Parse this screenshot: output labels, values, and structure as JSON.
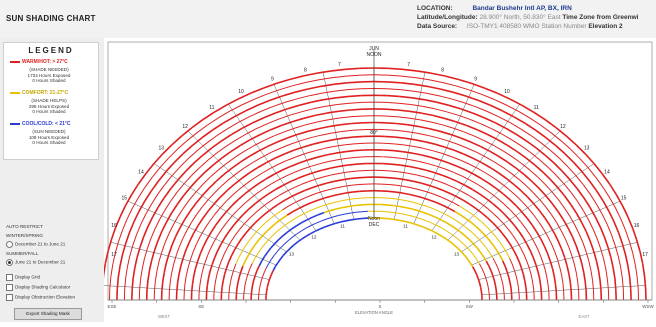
{
  "app": {
    "title": "SUN SHADING CHART"
  },
  "header": {
    "location_label": "LOCATION:",
    "location_value": "Bandar Bushehr Intl AP, BX, IRN",
    "latlon_label": "Latitude/Longitude:",
    "latlon_value": "28.900° North, 50.830° East",
    "tz_label": "Time Zone from Greenwi",
    "datasource_label": "Data Source:",
    "datasource_value": "ISO-TMY1 408580 WMO Station Number",
    "elevation_label": "Elevation 2"
  },
  "legend": {
    "title": "LEGEND",
    "warm_label": "WARM/HOT: > 27°C",
    "warm_line1": "(SHADE NEEDED)",
    "warm_line2": "1734 Hours Exposed",
    "warm_line3": "0 Hours Shaded",
    "comfort_label": "COMFORT: 21-27°C",
    "comfort_line1": "(SHADE HELPS)",
    "comfort_line2": "295 Hours Exposed",
    "comfort_line3": "0 Hours Shaded",
    "cool_label": "COOL/COLD: < 21°C",
    "cool_line1": "(SUN NEEDED)",
    "cool_line2": "108 Hours Exposed",
    "cool_line3": "0 Hours Shaded",
    "colors": {
      "warm": "#e02020",
      "comfort": "#e8c200",
      "cool": "#2a3bd6"
    }
  },
  "controls": {
    "section_label": "AUTO RESTRICT",
    "winter_label": "WINTER/SPRING",
    "winter_option": "December 21 to June 21",
    "summer_label": "SUMMER/FALL",
    "summer_option": "June 21 to December 21",
    "grid_label": "Display Grid",
    "masking_label": "Display Shading Calculator",
    "obstruction_label": "Display Obstruction Elevation",
    "button_label": "Export Shading Mask"
  },
  "chart_data": {
    "type": "sun-path",
    "top_label_1": "JUN",
    "top_label_2": "NOON",
    "inner_label_1": "Noon",
    "inner_label_2": "DEC",
    "center_value": "80°",
    "hour_labels_left": [
      "17",
      "16",
      "15",
      "14",
      "13",
      "12",
      "11",
      "10",
      "9",
      "8",
      "7"
    ],
    "hour_labels_right": [
      "7",
      "8",
      "9",
      "10",
      "11",
      "12",
      "13",
      "14",
      "15",
      "16",
      "17"
    ],
    "inner_hours_left": [
      "11",
      "12",
      "13"
    ],
    "inner_hours_right": [
      "11",
      "12",
      "13"
    ],
    "axis_labels": [
      "ESE",
      "",
      "SE",
      "",
      "",
      "",
      "S",
      "",
      "SW",
      "",
      "",
      "",
      "WSW"
    ],
    "axis_subtitle": "ELEVATION ANGLE",
    "corner_left": "WEST",
    "corner_right": "EAST"
  }
}
